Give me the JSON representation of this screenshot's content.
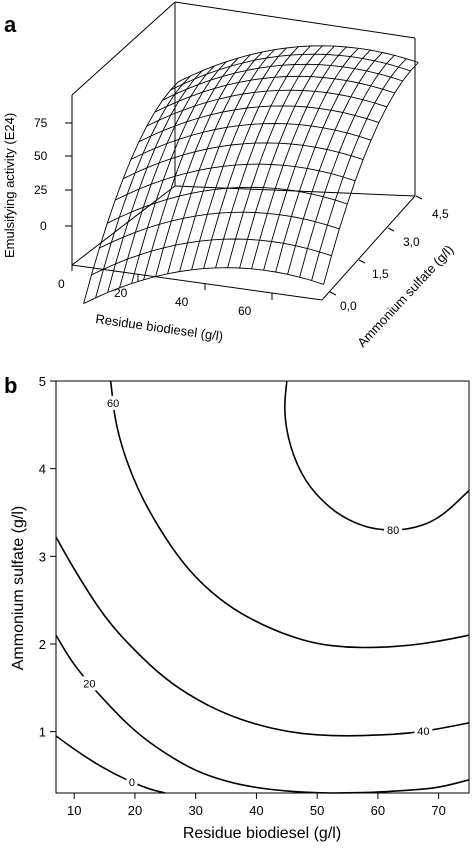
{
  "chart_data": [
    {
      "panel": "a",
      "type": "surface",
      "xlabel": "Residue biodiesel (g/l)",
      "ylabel": "Ammonium sulfate (g/l)",
      "zlabel": "Emulsifying activity (E24)",
      "x_ticks": [
        "0",
        "20",
        "40",
        "60"
      ],
      "y_ticks": [
        "0,0",
        "1,5",
        "3,0",
        "4,5"
      ],
      "z_ticks": [
        "0",
        "25",
        "50",
        "75"
      ],
      "xlim": [
        0,
        75
      ],
      "ylim": [
        0,
        5
      ],
      "zlim": [
        0,
        90
      ],
      "grid_size": [
        20,
        12
      ],
      "model": {
        "form": "paraboloid",
        "peak_x": 57,
        "peak_y": 5.3,
        "peak_z": 87,
        "x_scale": 0.0122,
        "y_scale": 8.0,
        "cross_term": 0.08
      }
    },
    {
      "panel": "b",
      "type": "contour",
      "xlabel": "Residue biodiesel (g/l)",
      "ylabel": "Ammonium sulfate (g/l)",
      "x_ticks": [
        10,
        20,
        30,
        40,
        50,
        60,
        70
      ],
      "y_ticks": [
        1,
        2,
        3,
        4,
        5
      ],
      "xlim": [
        7,
        75
      ],
      "ylim": [
        0.3,
        5
      ],
      "contours": [
        {
          "level": 0,
          "label": "0",
          "points": [
            [
              7,
              0.95
            ],
            [
              12,
              0.7
            ],
            [
              17,
              0.5
            ],
            [
              22,
              0.35
            ],
            [
              25,
              0.3
            ]
          ]
        },
        {
          "level": 20,
          "label": "20",
          "points": [
            [
              7,
              2.1
            ],
            [
              10,
              1.75
            ],
            [
              15,
              1.35
            ],
            [
              20,
              1.0
            ],
            [
              25,
              0.75
            ],
            [
              30,
              0.55
            ],
            [
              35,
              0.43
            ],
            [
              40,
              0.36
            ],
            [
              45,
              0.32
            ],
            [
              50,
              0.3
            ],
            [
              55,
              0.3
            ],
            [
              60,
              0.31
            ],
            [
              65,
              0.33
            ],
            [
              70,
              0.36
            ],
            [
              75,
              0.45
            ]
          ]
        },
        {
          "level": 40,
          "label": "40",
          "points": [
            [
              7,
              3.22
            ],
            [
              10,
              2.85
            ],
            [
              15,
              2.3
            ],
            [
              20,
              1.92
            ],
            [
              25,
              1.6
            ],
            [
              30,
              1.37
            ],
            [
              35,
              1.2
            ],
            [
              40,
              1.08
            ],
            [
              45,
              1.0
            ],
            [
              50,
              0.96
            ],
            [
              55,
              0.95
            ],
            [
              60,
              0.96
            ],
            [
              65,
              0.98
            ],
            [
              70,
              1.03
            ],
            [
              75,
              1.1
            ]
          ]
        },
        {
          "level": 60,
          "label": "60",
          "points": [
            [
              16,
              5.0
            ],
            [
              16.8,
              4.5
            ],
            [
              19,
              4.0
            ],
            [
              22,
              3.55
            ],
            [
              26,
              3.1
            ],
            [
              30,
              2.75
            ],
            [
              35,
              2.45
            ],
            [
              40,
              2.25
            ],
            [
              45,
              2.1
            ],
            [
              50,
              2.0
            ],
            [
              55,
              1.96
            ],
            [
              60,
              1.96
            ],
            [
              65,
              1.98
            ],
            [
              70,
              2.03
            ],
            [
              75,
              2.1
            ]
          ]
        },
        {
          "level": 80,
          "label": "80",
          "points": [
            [
              45,
              5.0
            ],
            [
              44.5,
              4.65
            ],
            [
              45.5,
              4.25
            ],
            [
              48,
              3.85
            ],
            [
              52,
              3.55
            ],
            [
              56,
              3.38
            ],
            [
              60,
              3.3
            ],
            [
              65,
              3.3
            ],
            [
              70,
              3.42
            ],
            [
              75,
              3.75
            ]
          ]
        }
      ]
    }
  ]
}
